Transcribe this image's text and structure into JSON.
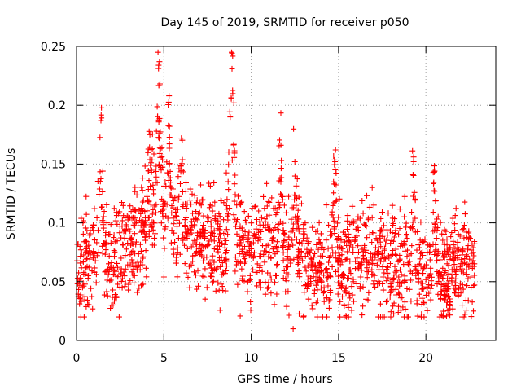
{
  "chart_data": {
    "type": "scatter",
    "title": "Day 145 of 2019, SRMTID for receiver p050",
    "xlabel": "GPS time / hours",
    "ylabel": "SRMTID / TECUs",
    "xlim": [
      0,
      24
    ],
    "ylim": [
      0,
      0.25
    ],
    "xticks": [
      0,
      5,
      10,
      15,
      20
    ],
    "xtick_labels": [
      "0",
      "5",
      "10",
      "15",
      "20"
    ],
    "yticks": [
      0,
      0.05,
      0.1,
      0.15,
      0.2,
      0.25
    ],
    "ytick_labels": [
      "0",
      "0.05",
      "0.1",
      "0.15",
      "0.2",
      "0.25"
    ],
    "grid": true,
    "marker": "+",
    "series": [
      {
        "name": "SRMTID",
        "color": "#ff0000",
        "x_range": [
          0.0,
          22.8
        ],
        "baseline_trend": [
          [
            0.0,
            0.06
          ],
          [
            1.0,
            0.075
          ],
          [
            2.0,
            0.07
          ],
          [
            3.0,
            0.08
          ],
          [
            4.0,
            0.09
          ],
          [
            4.8,
            0.11
          ],
          [
            5.5,
            0.095
          ],
          [
            7.0,
            0.085
          ],
          [
            8.0,
            0.08
          ],
          [
            9.0,
            0.085
          ],
          [
            10.0,
            0.075
          ],
          [
            11.0,
            0.08
          ],
          [
            12.0,
            0.075
          ],
          [
            13.0,
            0.07
          ],
          [
            14.0,
            0.06
          ],
          [
            15.0,
            0.065
          ],
          [
            16.0,
            0.07
          ],
          [
            17.0,
            0.07
          ],
          [
            18.0,
            0.065
          ],
          [
            19.0,
            0.06
          ],
          [
            20.0,
            0.06
          ],
          [
            21.0,
            0.055
          ],
          [
            22.0,
            0.06
          ],
          [
            22.8,
            0.07
          ]
        ],
        "peaks": [
          {
            "x": 1.4,
            "y": 0.187
          },
          {
            "x": 4.2,
            "y": 0.175
          },
          {
            "x": 4.7,
            "y": 0.234
          },
          {
            "x": 5.3,
            "y": 0.208
          },
          {
            "x": 6.0,
            "y": 0.172
          },
          {
            "x": 8.9,
            "y": 0.231
          },
          {
            "x": 8.8,
            "y": 0.19
          },
          {
            "x": 11.7,
            "y": 0.166
          },
          {
            "x": 12.5,
            "y": 0.152
          },
          {
            "x": 14.8,
            "y": 0.152
          },
          {
            "x": 19.3,
            "y": 0.156
          },
          {
            "x": 20.5,
            "y": 0.144
          }
        ],
        "min_value": 0.01,
        "min_at_x": 12.4
      }
    ]
  }
}
